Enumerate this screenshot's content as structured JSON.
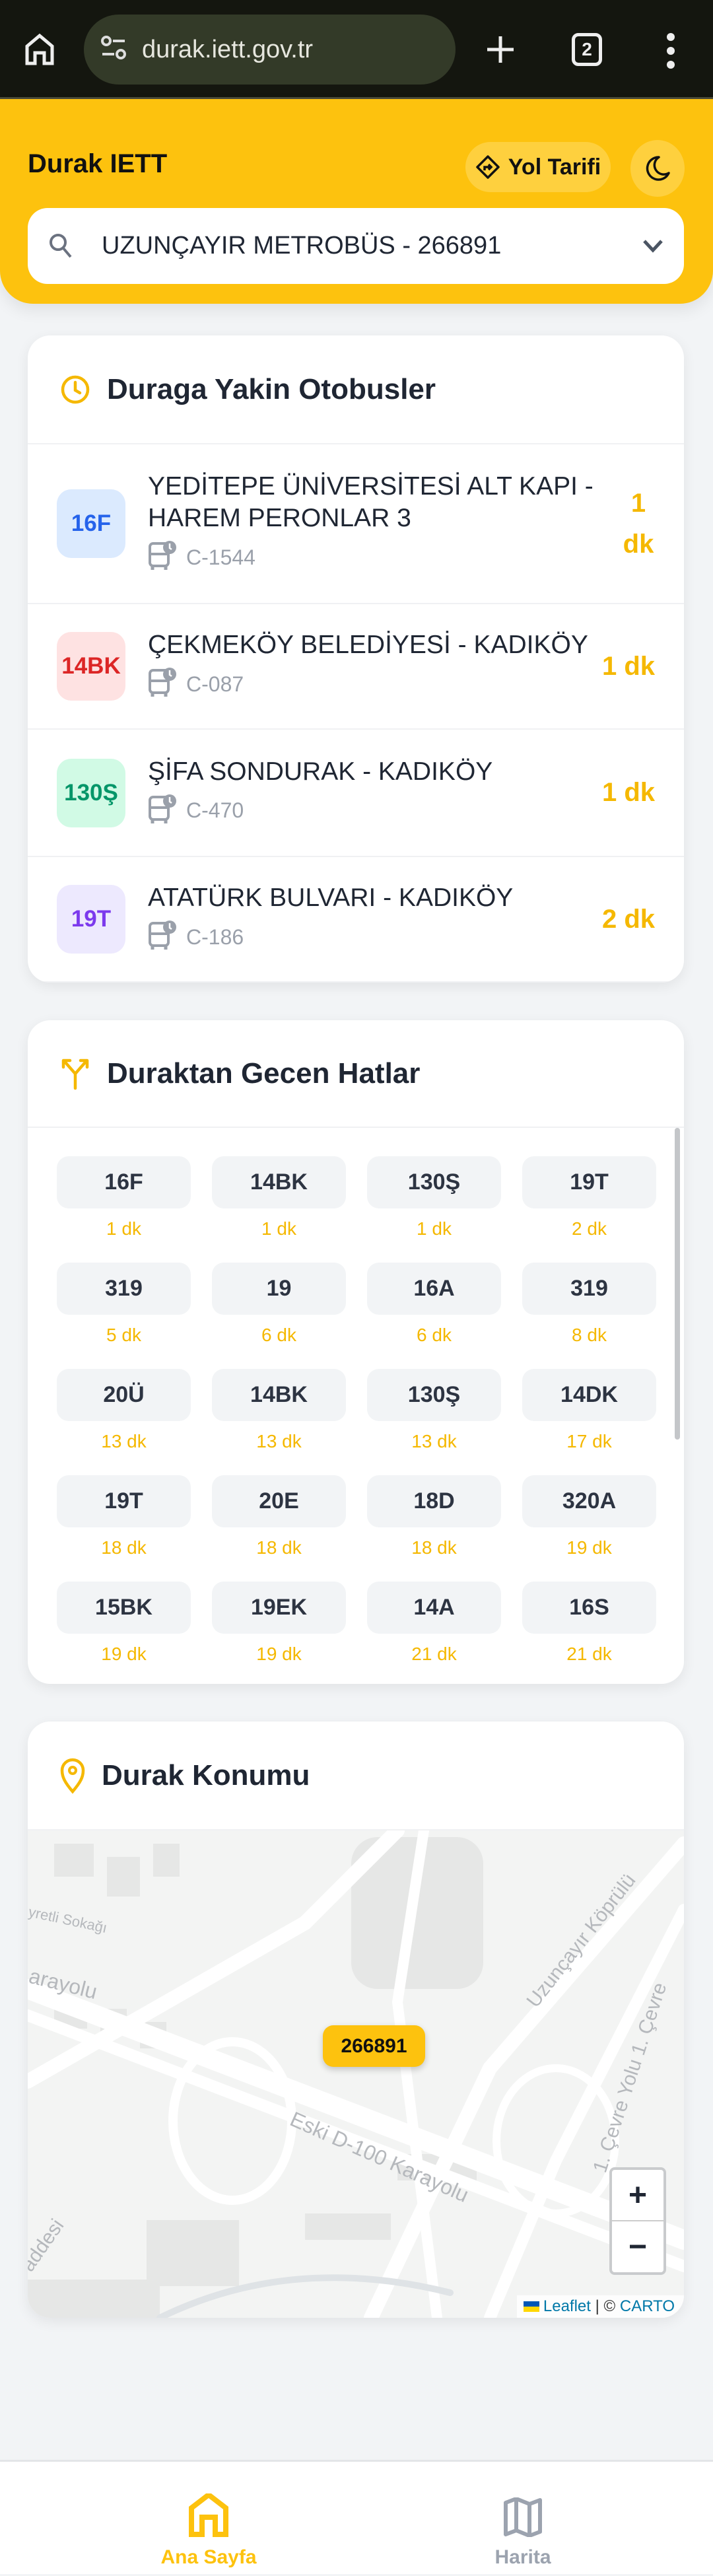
{
  "browser": {
    "url": "durak.iett.gov.tr",
    "tab_count": "2",
    "icons": [
      "home-icon",
      "site-settings-icon",
      "plus-icon",
      "tabs-icon",
      "more-vert-icon"
    ]
  },
  "header": {
    "title": "Durak IETT",
    "route_button": "Yol Tarifi",
    "theme_icon": "moon-icon"
  },
  "search": {
    "value": "UZUNÇAYIR METROBÜS - 266891"
  },
  "colors": {
    "accent": "#fdc20e",
    "eta": "#f5b800",
    "text": "#1f2633"
  },
  "nearby": {
    "title": "Duraga Yakin Otobusler",
    "buses": [
      {
        "line": "16F",
        "destination": "YEDİTEPE ÜNİVERSİTESİ ALT KAPI - HAREM PERONLAR 3",
        "plate": "C-1544",
        "eta": "1 dk",
        "bg": "#dbeafe",
        "fg": "#2563eb"
      },
      {
        "line": "14BK",
        "destination": "ÇEKMEKÖY BELEDİYESİ - KADIKÖY",
        "plate": "C-087",
        "eta": "1 dk",
        "bg": "#fee2e2",
        "fg": "#dc2626"
      },
      {
        "line": "130Ş",
        "destination": "ŞİFA SONDURAK - KADIKÖY",
        "plate": "C-470",
        "eta": "1 dk",
        "bg": "#d1fae5",
        "fg": "#059669"
      },
      {
        "line": "19T",
        "destination": "ATATÜRK BULVARI - KADIKÖY",
        "plate": "C-186",
        "eta": "2 dk",
        "bg": "#ede9fe",
        "fg": "#7c3aed"
      }
    ]
  },
  "lines": {
    "title": "Duraktan Gecen Hatlar",
    "items": [
      {
        "line": "16F",
        "eta": "1 dk"
      },
      {
        "line": "14BK",
        "eta": "1 dk"
      },
      {
        "line": "130Ş",
        "eta": "1 dk"
      },
      {
        "line": "19T",
        "eta": "2 dk"
      },
      {
        "line": "319",
        "eta": "5 dk"
      },
      {
        "line": "19",
        "eta": "6 dk"
      },
      {
        "line": "16A",
        "eta": "6 dk"
      },
      {
        "line": "319",
        "eta": "8 dk"
      },
      {
        "line": "20Ü",
        "eta": "13 dk"
      },
      {
        "line": "14BK",
        "eta": "13 dk"
      },
      {
        "line": "130Ş",
        "eta": "13 dk"
      },
      {
        "line": "14DK",
        "eta": "17 dk"
      },
      {
        "line": "19T",
        "eta": "18 dk"
      },
      {
        "line": "20E",
        "eta": "18 dk"
      },
      {
        "line": "18D",
        "eta": "18 dk"
      },
      {
        "line": "320A",
        "eta": "19 dk"
      },
      {
        "line": "15BK",
        "eta": "19 dk"
      },
      {
        "line": "19EK",
        "eta": "19 dk"
      },
      {
        "line": "14A",
        "eta": "21 dk"
      },
      {
        "line": "16S",
        "eta": "21 dk"
      }
    ]
  },
  "location": {
    "title": "Durak Konumu",
    "marker": "266891",
    "map_labels": [
      "yretli Sokağı",
      "arayolu",
      "Uzunçayır Köprülü",
      "1. Çevre Yolu 1. Çevre",
      "Eski D-100 Karayolu",
      "addesi"
    ],
    "zoom_in": "+",
    "zoom_out": "−",
    "attribution": {
      "leaflet": "Leaflet",
      "sep": " | © ",
      "carto": "CARTO"
    }
  },
  "nav": {
    "items": [
      {
        "label": "Ana Sayfa",
        "active": true
      },
      {
        "label": "Harita",
        "active": false
      }
    ]
  }
}
